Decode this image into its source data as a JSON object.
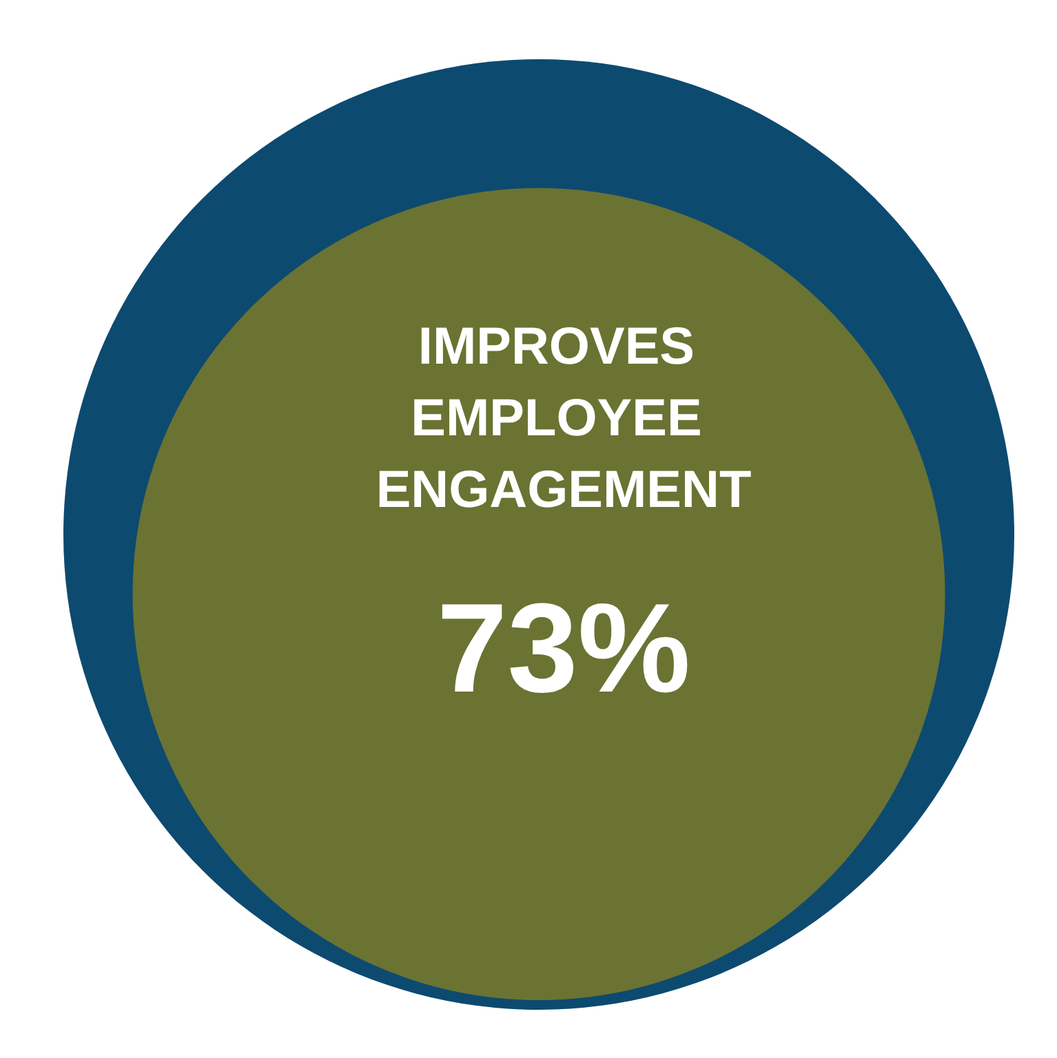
{
  "chart_data": {
    "type": "other",
    "categories": [
      "IMPROVES EMPLOYEE ENGAGEMENT"
    ],
    "values": [
      73
    ],
    "value_labels": [
      "73%"
    ],
    "colors": [
      "#6a7332"
    ]
  }
}
